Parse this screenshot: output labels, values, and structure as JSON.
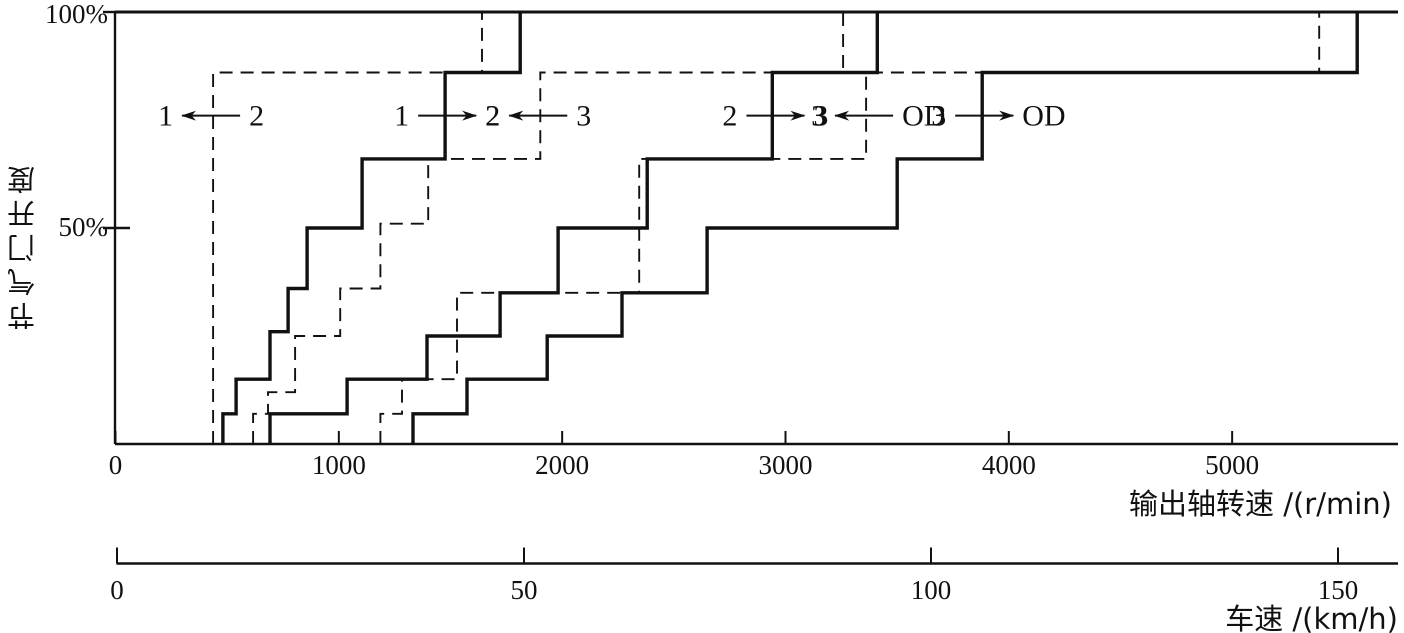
{
  "chart_data": {
    "type": "line",
    "subtype": "step-shift-schedule",
    "title": "",
    "y_axis": {
      "label": "节气门开度",
      "range": [
        0,
        100
      ],
      "unit": "%",
      "ticks": [
        {
          "v": 50,
          "label": "50%"
        },
        {
          "v": 100,
          "label": "100%"
        }
      ]
    },
    "x_axis": {
      "label": "输出轴转速 /(r/min)",
      "range": [
        0,
        5745
      ],
      "unit": "r/min",
      "ticks": [
        {
          "v": 0,
          "label": "0"
        },
        {
          "v": 1000,
          "label": "1000"
        },
        {
          "v": 2000,
          "label": "2000"
        },
        {
          "v": 3000,
          "label": "3000"
        },
        {
          "v": 4000,
          "label": "4000"
        },
        {
          "v": 5000,
          "label": "5000"
        }
      ]
    },
    "x_axis2": {
      "label": "车速 /(km/h)",
      "range": [
        0,
        157
      ],
      "unit": "km/h",
      "ticks": [
        {
          "v": 0,
          "label": "0"
        },
        {
          "v": 50,
          "label": "50"
        },
        {
          "v": 100,
          "label": "100"
        },
        {
          "v": 150,
          "label": "150"
        }
      ]
    },
    "line_color": "#111111",
    "series": [
      {
        "id": "downshift-2-1",
        "name": "2→1 downshift",
        "style": "dashed",
        "points": [
          [
            437,
            0
          ],
          [
            437,
            86
          ],
          [
            1641,
            86
          ],
          [
            1641,
            100
          ]
        ]
      },
      {
        "id": "upshift-1-2",
        "name": "1→2 upshift",
        "style": "solid",
        "points": [
          [
            481,
            0
          ],
          [
            481,
            7
          ],
          [
            540,
            7
          ],
          [
            540,
            15
          ],
          [
            692,
            15
          ],
          [
            692,
            26
          ],
          [
            773,
            26
          ],
          [
            773,
            36
          ],
          [
            858,
            36
          ],
          [
            858,
            50
          ],
          [
            1104,
            50
          ],
          [
            1104,
            66
          ],
          [
            1476,
            66
          ],
          [
            1476,
            86
          ],
          [
            1812,
            86
          ],
          [
            1812,
            100
          ]
        ]
      },
      {
        "id": "downshift-3-2",
        "name": "3→2 downshift",
        "style": "dashed",
        "points": [
          [
            616,
            0
          ],
          [
            616,
            7
          ],
          [
            683,
            7
          ],
          [
            683,
            12
          ],
          [
            804,
            12
          ],
          [
            804,
            25
          ],
          [
            1006,
            25
          ],
          [
            1006,
            36
          ],
          [
            1186,
            36
          ],
          [
            1186,
            51
          ],
          [
            1400,
            51
          ],
          [
            1400,
            66
          ],
          [
            1902,
            66
          ],
          [
            1902,
            86
          ],
          [
            3258,
            86
          ],
          [
            3258,
            100
          ]
        ]
      },
      {
        "id": "upshift-2-3",
        "name": "2→3 upshift",
        "style": "solid",
        "points": [
          [
            692,
            0
          ],
          [
            692,
            7
          ],
          [
            1037,
            7
          ],
          [
            1037,
            15
          ],
          [
            1395,
            15
          ],
          [
            1395,
            25
          ],
          [
            1722,
            25
          ],
          [
            1722,
            35
          ],
          [
            1982,
            35
          ],
          [
            1982,
            50
          ],
          [
            2381,
            50
          ],
          [
            2381,
            66
          ],
          [
            2941,
            66
          ],
          [
            2941,
            86
          ],
          [
            3411,
            86
          ],
          [
            3411,
            100
          ]
        ]
      },
      {
        "id": "downshift-OD-3",
        "name": "OD→3 downshift",
        "style": "dashed",
        "points": [
          [
            1186,
            0
          ],
          [
            1186,
            7
          ],
          [
            1283,
            7
          ],
          [
            1283,
            15
          ],
          [
            1529,
            15
          ],
          [
            1529,
            35
          ],
          [
            2345,
            35
          ],
          [
            2345,
            66
          ],
          [
            3361,
            66
          ],
          [
            3361,
            86
          ],
          [
            5390,
            86
          ],
          [
            5390,
            100
          ]
        ]
      },
      {
        "id": "upshift-3-OD",
        "name": "3→OD upshift",
        "style": "solid",
        "points": [
          [
            1332,
            0
          ],
          [
            1332,
            7
          ],
          [
            1574,
            7
          ],
          [
            1574,
            15
          ],
          [
            1933,
            15
          ],
          [
            1933,
            25
          ],
          [
            2268,
            25
          ],
          [
            2268,
            35
          ],
          [
            2649,
            35
          ],
          [
            2649,
            50
          ],
          [
            3500,
            50
          ],
          [
            3500,
            66
          ],
          [
            3881,
            66
          ],
          [
            3881,
            86
          ],
          [
            5560,
            86
          ],
          [
            5560,
            100
          ]
        ]
      }
    ],
    "annotations": [
      {
        "id": "label-2-to-1",
        "left_label": "1",
        "right_label": "2",
        "direction": "left",
        "rpm": 437,
        "throttle_pct": 76
      },
      {
        "id": "label-1-to-2",
        "left_label": "1",
        "right_label": "2",
        "direction": "right",
        "rpm": 1476,
        "throttle_pct": 76
      },
      {
        "id": "label-3-to-2",
        "left_label": "2",
        "right_label": "3",
        "direction": "left",
        "rpm": 1902,
        "throttle_pct": 76
      },
      {
        "id": "label-2-to-3",
        "left_label": "2",
        "right_label": "3",
        "direction": "right",
        "rpm": 2946,
        "throttle_pct": 76
      },
      {
        "id": "label-OD-to-3",
        "left_label": "3",
        "right_label": "OD",
        "direction": "left",
        "rpm": 3361,
        "throttle_pct": 76
      },
      {
        "id": "label-3-to-OD",
        "left_label": "3",
        "right_label": "OD",
        "direction": "right",
        "rpm": 3881,
        "throttle_pct": 76
      }
    ],
    "legend_position": "none",
    "grid": false
  }
}
